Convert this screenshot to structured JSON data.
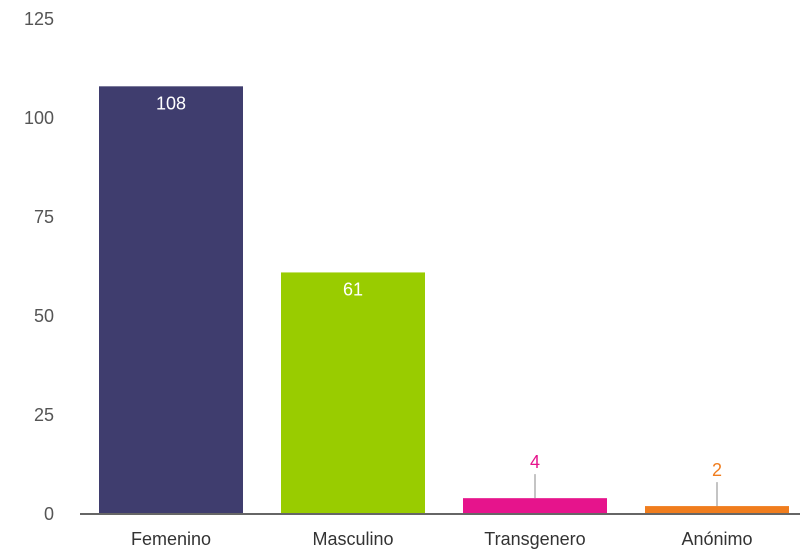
{
  "chart_data": {
    "type": "bar",
    "title": "",
    "xlabel": "",
    "ylabel": "",
    "categories": [
      "Femenino",
      "Masculino",
      "Transgenero",
      "Anónimo"
    ],
    "values": [
      108,
      61,
      4,
      2
    ],
    "value_labels": [
      "108",
      "61",
      "4",
      "2"
    ],
    "colors": [
      "#3f3d6e",
      "#99cc00",
      "#e6148c",
      "#f07d1e"
    ],
    "label_colors": [
      "#ffffff",
      "#ffffff",
      "#e6148c",
      "#f07d1e"
    ],
    "label_position": [
      "inside",
      "inside",
      "outside-leader",
      "outside-leader"
    ],
    "ylim": [
      0,
      125
    ],
    "yticks": [
      0,
      25,
      50,
      75,
      100,
      125
    ],
    "ytick_labels": [
      "0",
      "25",
      "50",
      "75",
      "100",
      "125"
    ],
    "grid": false,
    "legend": "none",
    "axis_color": "#666666"
  }
}
